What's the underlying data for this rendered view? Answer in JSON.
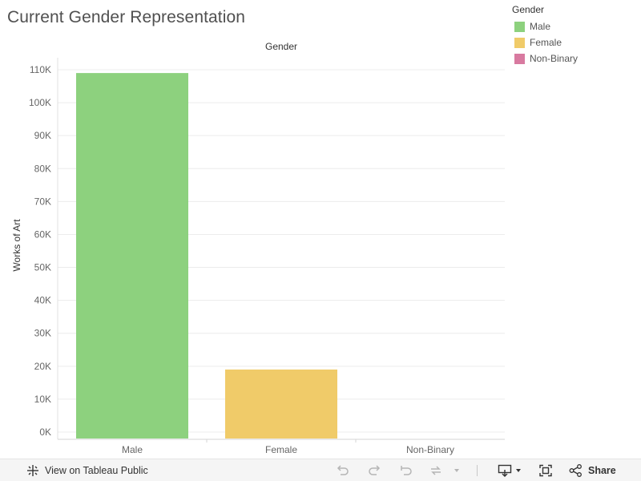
{
  "title": "Current Gender Representation",
  "legend": {
    "title": "Gender",
    "items": [
      {
        "label": "Male",
        "color": "#8dd17e"
      },
      {
        "label": "Female",
        "color": "#f0cb69"
      },
      {
        "label": "Non-Binary",
        "color": "#d87aa0"
      }
    ]
  },
  "chart_data": {
    "type": "bar",
    "header": "Gender",
    "ylabel": "Works of Art",
    "categories": [
      "Male",
      "Female",
      "Non-Binary"
    ],
    "values": [
      109000,
      19000,
      0
    ],
    "colors": [
      "#8dd17e",
      "#f0cb69",
      "#d87aa0"
    ],
    "ylim": [
      0,
      110000
    ],
    "yticks": [
      0,
      10000,
      20000,
      30000,
      40000,
      50000,
      60000,
      70000,
      80000,
      90000,
      100000,
      110000
    ],
    "ytick_labels": [
      "0K",
      "10K",
      "20K",
      "30K",
      "40K",
      "50K",
      "60K",
      "70K",
      "80K",
      "90K",
      "100K",
      "110K"
    ],
    "grid": true,
    "legend_position": "top-right"
  },
  "toolbar": {
    "view_label": "View on Tableau Public",
    "share_label": "Share"
  }
}
